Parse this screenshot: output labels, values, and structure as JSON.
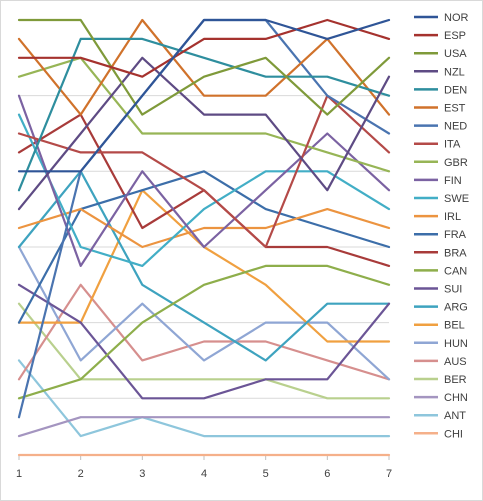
{
  "chart_data": {
    "type": "line",
    "categories": [
      "1",
      "2",
      "3",
      "4",
      "5",
      "6",
      "7"
    ],
    "ylim": [
      1,
      23
    ],
    "y_reversed": true,
    "grid": true,
    "legend_position": "right",
    "series": [
      {
        "name": "NOR",
        "color": "#2f5597",
        "values": [
          9,
          9,
          5,
          1,
          1,
          2,
          1
        ]
      },
      {
        "name": "ESP",
        "color": "#a5322e",
        "values": [
          3,
          3,
          4,
          2,
          2,
          1,
          2
        ]
      },
      {
        "name": "USA",
        "color": "#7f9a3a",
        "values": [
          1,
          1,
          6,
          4,
          3,
          6,
          3
        ]
      },
      {
        "name": "NZL",
        "color": "#5e4b84",
        "values": [
          11,
          7,
          3,
          6,
          6,
          10,
          4
        ]
      },
      {
        "name": "DEN",
        "color": "#2e8e9e",
        "values": [
          10,
          2,
          2,
          3,
          4,
          4,
          5
        ]
      },
      {
        "name": "EST",
        "color": "#d0722b",
        "values": [
          2,
          6,
          1,
          5,
          5,
          2,
          6
        ]
      },
      {
        "name": "NED",
        "color": "#4a74b0",
        "values": [
          22,
          9,
          5,
          1,
          1,
          5,
          7
        ]
      },
      {
        "name": "ITA",
        "color": "#b44a48",
        "values": [
          7,
          8,
          8,
          10,
          13,
          5,
          8
        ]
      },
      {
        "name": "GBR",
        "color": "#97b556",
        "values": [
          4,
          3,
          7,
          7,
          7,
          8,
          9
        ]
      },
      {
        "name": "FIN",
        "color": "#7b62a2",
        "values": [
          5,
          14,
          9,
          13,
          10,
          7,
          10
        ]
      },
      {
        "name": "SWE",
        "color": "#42aec6",
        "values": [
          6,
          13,
          14,
          11,
          9,
          9,
          11
        ]
      },
      {
        "name": "IRL",
        "color": "#ec9440",
        "values": [
          12,
          11,
          13,
          12,
          12,
          11,
          12
        ]
      },
      {
        "name": "FRA",
        "color": "#3c6ea9",
        "values": [
          17,
          11,
          10,
          9,
          11,
          12,
          13
        ]
      },
      {
        "name": "BRA",
        "color": "#a83b3a",
        "values": [
          8,
          6,
          12,
          10,
          13,
          13,
          14
        ]
      },
      {
        "name": "CAN",
        "color": "#8eae4b",
        "values": [
          21,
          20,
          17,
          15,
          14,
          14,
          15
        ]
      },
      {
        "name": "SUI",
        "color": "#6b5596",
        "values": [
          15,
          17,
          21,
          21,
          20,
          20,
          16
        ]
      },
      {
        "name": "ARG",
        "color": "#3ea3bf",
        "values": [
          13,
          9,
          15,
          17,
          19,
          16,
          16
        ]
      },
      {
        "name": "BEL",
        "color": "#f0a040",
        "values": [
          17,
          17,
          10,
          13,
          15,
          18,
          18
        ]
      },
      {
        "name": "HUN",
        "color": "#8fa6d4",
        "values": [
          13,
          19,
          16,
          19,
          17,
          17,
          20
        ]
      },
      {
        "name": "AUS",
        "color": "#d68f8e",
        "values": [
          20,
          15,
          19,
          18,
          18,
          19,
          20
        ]
      },
      {
        "name": "BER",
        "color": "#b9d08e",
        "values": [
          16,
          20,
          20,
          20,
          20,
          21,
          21
        ]
      },
      {
        "name": "CHN",
        "color": "#a495c0",
        "values": [
          23,
          22,
          22,
          22,
          22,
          22,
          22
        ]
      },
      {
        "name": "ANT",
        "color": "#8ec6dc",
        "values": [
          19,
          23,
          22,
          23,
          23,
          23,
          23
        ]
      },
      {
        "name": "CHI",
        "color": "#f5b08a",
        "values": [
          24,
          24,
          24,
          24,
          24,
          24,
          24
        ]
      }
    ]
  }
}
